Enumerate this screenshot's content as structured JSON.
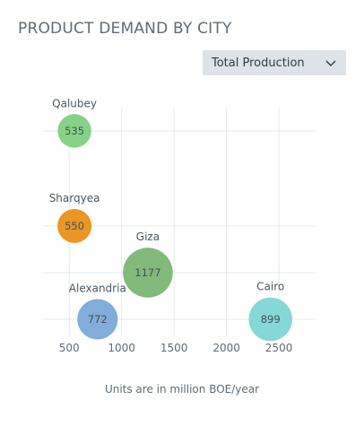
{
  "header": {
    "title": "PRODUCT DEMAND BY CITY"
  },
  "filter": {
    "selected": "Total Production",
    "icon": "chevron-down-icon"
  },
  "footer": {
    "note": "Units are in million BOE/year"
  },
  "chart_data": {
    "type": "scatter",
    "title": "PRODUCT DEMAND BY CITY",
    "xlabel": "",
    "ylabel": "",
    "xlim": [
      250,
      2850
    ],
    "xticks": [
      500,
      1000,
      1500,
      2000,
      2500
    ],
    "grid": true,
    "legend": "none",
    "points": [
      {
        "name": "Qalubey",
        "x": 550,
        "size": 535,
        "color": "#7fd07f"
      },
      {
        "name": "Sharqyea",
        "x": 550,
        "size": 550,
        "color": "#e8901a"
      },
      {
        "name": "Giza",
        "x": 1250,
        "size": 1177,
        "color": "#7cb574"
      },
      {
        "name": "Cairo",
        "x": 2420,
        "size": 899,
        "color": "#80d6d4"
      },
      {
        "name": "Alexandria",
        "x": 770,
        "size": 772,
        "color": "#7ba9d6"
      }
    ]
  }
}
